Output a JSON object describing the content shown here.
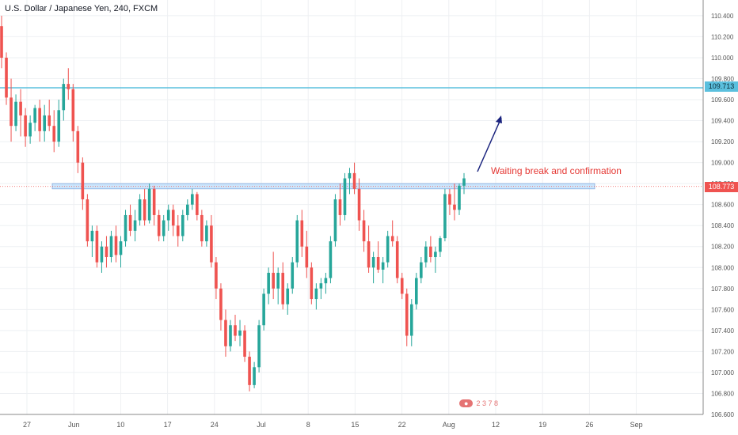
{
  "header": {
    "title": "U.S. Dollar / Japanese Yen, 240, FXCM"
  },
  "annotation": {
    "text": "Waiting break and confirmation"
  },
  "price_labels": {
    "resistance": "109.713",
    "current": "108.773"
  },
  "watermark": {
    "text": "2 3 7 8"
  },
  "colors": {
    "bull": "#26a69a",
    "bear": "#ef5350",
    "resistance": "#5bc0de",
    "zone": "#bbdefb",
    "arrow": "#1a237e",
    "current": "#ef5350"
  },
  "chart_data": {
    "type": "candlestick",
    "y_axis": {
      "ticks": [
        "110.400",
        "110.200",
        "110.000",
        "109.800",
        "109.600",
        "109.400",
        "109.200",
        "109.000",
        "108.800",
        "108.600",
        "108.400",
        "108.200",
        "108.000",
        "107.800",
        "107.600",
        "107.400",
        "107.200",
        "107.000",
        "106.800",
        "106.600"
      ],
      "ylim": [
        106.6,
        110.55
      ]
    },
    "x_axis": {
      "ticks": [
        "27",
        "Jun",
        "10",
        "17",
        "24",
        "Jul",
        "8",
        "15",
        "22",
        "Aug",
        "12",
        "19",
        "26",
        "Sep"
      ]
    },
    "levels": {
      "resistance": 109.713,
      "current": 108.773,
      "zone": [
        108.75,
        108.8
      ]
    },
    "candles": [
      [
        110.3,
        110.4,
        109.9,
        110.0
      ],
      [
        110.0,
        110.05,
        109.55,
        109.62
      ],
      [
        109.62,
        109.8,
        109.2,
        109.35
      ],
      [
        109.35,
        109.65,
        109.3,
        109.58
      ],
      [
        109.58,
        109.7,
        109.25,
        109.45
      ],
      [
        109.45,
        109.52,
        109.15,
        109.25
      ],
      [
        109.25,
        109.45,
        109.18,
        109.38
      ],
      [
        109.38,
        109.55,
        109.3,
        109.52
      ],
      [
        109.52,
        109.6,
        109.2,
        109.3
      ],
      [
        109.3,
        109.55,
        109.2,
        109.45
      ],
      [
        109.45,
        109.6,
        109.3,
        109.35
      ],
      [
        109.35,
        109.5,
        109.1,
        109.2
      ],
      [
        109.2,
        109.6,
        109.15,
        109.5
      ],
      [
        109.5,
        109.8,
        109.4,
        109.75
      ],
      [
        109.75,
        109.9,
        109.6,
        109.7
      ],
      [
        109.7,
        109.75,
        109.2,
        109.3
      ],
      [
        109.3,
        109.35,
        108.9,
        109.0
      ],
      [
        109.0,
        109.05,
        108.55,
        108.65
      ],
      [
        108.65,
        108.7,
        108.2,
        108.25
      ],
      [
        108.25,
        108.4,
        108.1,
        108.35
      ],
      [
        108.35,
        108.4,
        108.0,
        108.05
      ],
      [
        108.05,
        108.25,
        107.95,
        108.2
      ],
      [
        108.2,
        108.3,
        108.0,
        108.1
      ],
      [
        108.1,
        108.35,
        108.05,
        108.3
      ],
      [
        108.3,
        108.4,
        108.05,
        108.12
      ],
      [
        108.12,
        108.3,
        108.0,
        108.25
      ],
      [
        108.25,
        108.55,
        108.2,
        108.5
      ],
      [
        108.5,
        108.6,
        108.3,
        108.35
      ],
      [
        108.35,
        108.55,
        108.25,
        108.45
      ],
      [
        108.45,
        108.7,
        108.4,
        108.65
      ],
      [
        108.65,
        108.75,
        108.4,
        108.45
      ],
      [
        108.45,
        108.8,
        108.42,
        108.75
      ],
      [
        108.75,
        108.78,
        108.4,
        108.5
      ],
      [
        108.5,
        108.55,
        108.25,
        108.3
      ],
      [
        108.3,
        108.5,
        108.25,
        108.45
      ],
      [
        108.45,
        108.6,
        108.35,
        108.55
      ],
      [
        108.55,
        108.6,
        108.3,
        108.4
      ],
      [
        108.4,
        108.5,
        108.2,
        108.3
      ],
      [
        108.3,
        108.55,
        108.25,
        108.5
      ],
      [
        108.5,
        108.65,
        108.45,
        108.6
      ],
      [
        108.6,
        108.75,
        108.55,
        108.7
      ],
      [
        108.7,
        108.72,
        108.45,
        108.5
      ],
      [
        108.5,
        108.55,
        108.2,
        108.25
      ],
      [
        108.25,
        108.45,
        108.2,
        108.4
      ],
      [
        108.4,
        108.5,
        108.0,
        108.05
      ],
      [
        108.05,
        108.1,
        107.7,
        107.8
      ],
      [
        107.8,
        107.85,
        107.4,
        107.5
      ],
      [
        107.5,
        107.6,
        107.15,
        107.25
      ],
      [
        107.25,
        107.5,
        107.2,
        107.45
      ],
      [
        107.45,
        107.55,
        107.3,
        107.35
      ],
      [
        107.35,
        107.5,
        107.25,
        107.4
      ],
      [
        107.4,
        107.45,
        107.1,
        107.15
      ],
      [
        107.15,
        107.2,
        106.82,
        106.88
      ],
      [
        106.88,
        107.1,
        106.85,
        107.05
      ],
      [
        107.05,
        107.5,
        107.0,
        107.45
      ],
      [
        107.45,
        107.8,
        107.4,
        107.75
      ],
      [
        107.75,
        108.0,
        107.65,
        107.95
      ],
      [
        107.95,
        108.15,
        107.7,
        107.8
      ],
      [
        107.8,
        108.0,
        107.65,
        107.95
      ],
      [
        107.95,
        108.05,
        107.6,
        107.65
      ],
      [
        107.65,
        107.85,
        107.55,
        107.8
      ],
      [
        107.8,
        108.1,
        107.75,
        108.05
      ],
      [
        108.05,
        108.5,
        108.0,
        108.45
      ],
      [
        108.45,
        108.55,
        108.1,
        108.2
      ],
      [
        108.2,
        108.35,
        107.9,
        108.0
      ],
      [
        108.0,
        108.05,
        107.65,
        107.7
      ],
      [
        107.7,
        107.85,
        107.6,
        107.8
      ],
      [
        107.8,
        107.9,
        107.7,
        107.85
      ],
      [
        107.85,
        107.95,
        107.75,
        107.9
      ],
      [
        107.9,
        108.3,
        107.85,
        108.25
      ],
      [
        108.25,
        108.7,
        108.2,
        108.65
      ],
      [
        108.65,
        108.8,
        108.4,
        108.5
      ],
      [
        108.5,
        108.9,
        108.45,
        108.85
      ],
      [
        108.85,
        108.95,
        108.7,
        108.9
      ],
      [
        108.9,
        109.0,
        108.7,
        108.75
      ],
      [
        108.75,
        108.85,
        108.35,
        108.45
      ],
      [
        108.45,
        108.55,
        108.15,
        108.25
      ],
      [
        108.25,
        108.4,
        107.95,
        108.0
      ],
      [
        108.0,
        108.15,
        107.85,
        108.1
      ],
      [
        108.1,
        108.25,
        107.95,
        107.98
      ],
      [
        107.98,
        108.1,
        107.85,
        108.05
      ],
      [
        108.05,
        108.35,
        108.0,
        108.3
      ],
      [
        108.3,
        108.45,
        108.2,
        108.25
      ],
      [
        108.25,
        108.3,
        107.85,
        107.9
      ],
      [
        107.9,
        107.95,
        107.7,
        107.75
      ],
      [
        107.75,
        107.8,
        107.25,
        107.35
      ],
      [
        107.35,
        107.7,
        107.25,
        107.65
      ],
      [
        107.65,
        107.95,
        107.6,
        107.9
      ],
      [
        107.9,
        108.1,
        107.85,
        108.05
      ],
      [
        108.05,
        108.25,
        108.0,
        108.2
      ],
      [
        108.2,
        108.3,
        108.05,
        108.1
      ],
      [
        108.1,
        108.2,
        107.95,
        108.15
      ],
      [
        108.15,
        108.3,
        108.1,
        108.28
      ],
      [
        108.28,
        108.75,
        108.25,
        108.7
      ],
      [
        108.7,
        108.75,
        108.5,
        108.6
      ],
      [
        108.6,
        108.8,
        108.45,
        108.55
      ],
      [
        108.55,
        108.8,
        108.5,
        108.78
      ],
      [
        108.78,
        108.9,
        108.7,
        108.85
      ]
    ]
  }
}
